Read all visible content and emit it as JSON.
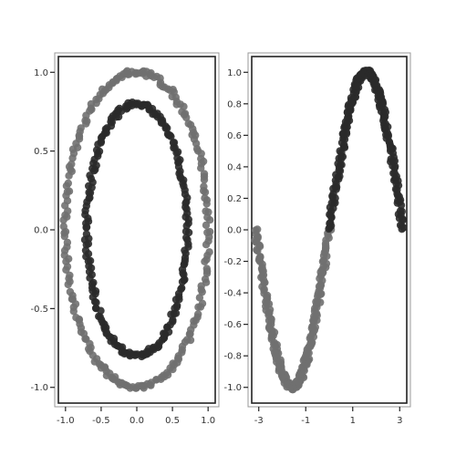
{
  "chart_data": [
    {
      "type": "scatter",
      "xlim": [
        -1.1,
        1.1
      ],
      "ylim": [
        -1.1,
        1.1
      ],
      "x_ticks": [
        -1.0,
        -0.5,
        0.0,
        0.5,
        1.0
      ],
      "x_tick_labels": [
        "-1.0",
        "-0.5",
        "0.0",
        "0.5",
        "1.0"
      ],
      "y_ticks": [
        -1.0,
        -0.5,
        0.0,
        0.5,
        1.0
      ],
      "y_tick_labels": [
        "-1.0",
        "-0.5",
        "0.0",
        "0.5",
        "1.0"
      ],
      "grid": false,
      "series": [
        {
          "shape": "ellipse",
          "center": [
            0.0,
            0.0
          ],
          "radius_x": 1.0,
          "radius_y": 1.0,
          "color": "#707070"
        },
        {
          "shape": "ellipse",
          "center": [
            0.0,
            0.0
          ],
          "radius_x": 0.7,
          "radius_y": 0.8,
          "color": "#2a2a2a"
        }
      ]
    },
    {
      "type": "scatter",
      "xlim": [
        -3.3,
        3.3
      ],
      "ylim": [
        -1.1,
        1.1
      ],
      "x_ticks": [
        -3,
        -1,
        1,
        3
      ],
      "x_tick_labels": [
        "-3",
        "-1",
        "1",
        "3"
      ],
      "y_ticks": [
        -1.0,
        -0.8,
        -0.6,
        -0.4,
        -0.2,
        0.0,
        0.2,
        0.4,
        0.6,
        0.8,
        1.0
      ],
      "y_tick_labels": [
        "-1.0",
        "-0.8",
        "-0.6",
        "-0.4",
        "-0.2",
        "0.0",
        "0.2",
        "0.4",
        "0.6",
        "0.8",
        "1.0"
      ],
      "grid": false,
      "series": [
        {
          "shape": "sine",
          "x_range": [
            -3.14,
            0.0
          ],
          "color": "#707070"
        },
        {
          "shape": "sine",
          "x_range": [
            0.0,
            3.14
          ],
          "color": "#2a2a2a"
        }
      ]
    }
  ]
}
